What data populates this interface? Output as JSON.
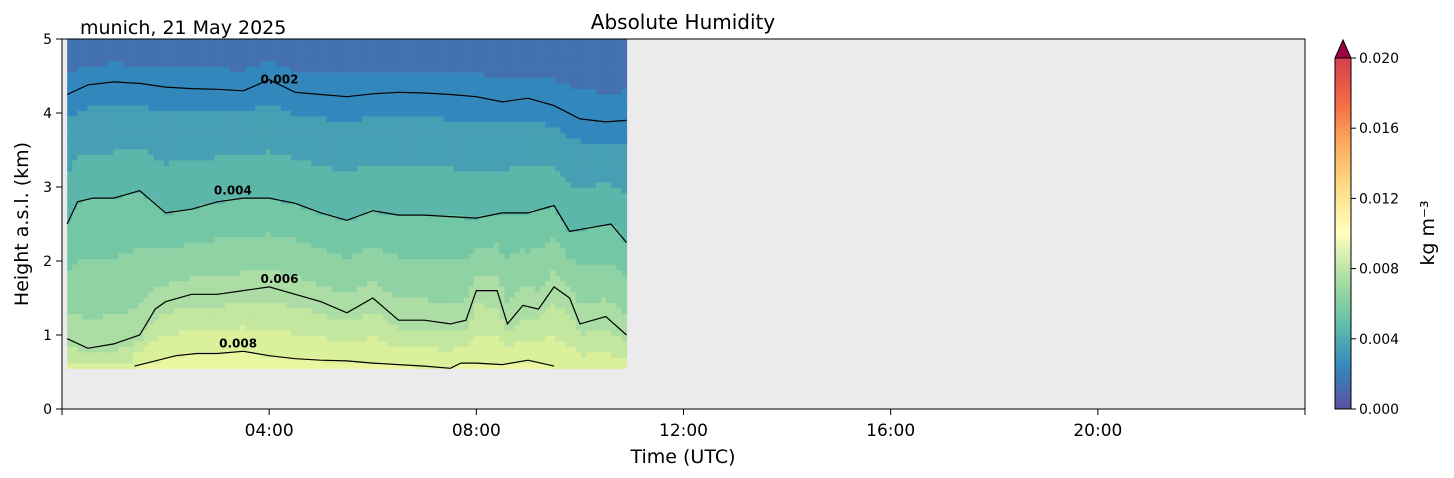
{
  "chart_data": {
    "type": "heatmap",
    "title": "Absolute Humidity",
    "subtitle": "munich, 21 May 2025",
    "xlabel": "Time (UTC)",
    "ylabel": "Height a.s.l. (km)",
    "xlim": [
      0,
      24
    ],
    "ylim": [
      0,
      5
    ],
    "x_ticks": [
      {
        "value": 4,
        "label": "04:00"
      },
      {
        "value": 8,
        "label": "08:00"
      },
      {
        "value": 12,
        "label": "12:00"
      },
      {
        "value": 16,
        "label": "16:00"
      },
      {
        "value": 20,
        "label": "20:00"
      }
    ],
    "y_ticks": [
      {
        "value": 0,
        "label": "0"
      },
      {
        "value": 1,
        "label": "1"
      },
      {
        "value": 2,
        "label": "2"
      },
      {
        "value": 3,
        "label": "3"
      },
      {
        "value": 4,
        "label": "4"
      },
      {
        "value": 5,
        "label": "5"
      }
    ],
    "data_extent": {
      "x": [
        0.1,
        10.9
      ],
      "y": [
        0.55,
        5.0
      ]
    },
    "no_data_color": "#ebebeb",
    "colormap": "Spectral_r",
    "colorbar": {
      "label": "kg m⁻³",
      "range": [
        0.0,
        0.02
      ],
      "extend": "max",
      "ticks": [
        {
          "value": 0.0,
          "label": "0.000"
        },
        {
          "value": 0.004,
          "label": "0.004"
        },
        {
          "value": 0.008,
          "label": "0.008"
        },
        {
          "value": 0.012,
          "label": "0.012"
        },
        {
          "value": 0.016,
          "label": "0.016"
        },
        {
          "value": 0.02,
          "label": "0.020"
        }
      ]
    },
    "contours": [
      {
        "level": 0.002,
        "label": "0.002",
        "label_at": [
          4.2,
          4.4
        ],
        "x": [
          0.1,
          0.5,
          1.0,
          1.5,
          2.0,
          2.5,
          3.0,
          3.5,
          4.0,
          4.5,
          5.0,
          5.5,
          6.0,
          6.5,
          7.0,
          7.5,
          8.0,
          8.5,
          9.0,
          9.5,
          10.0,
          10.5,
          10.9
        ],
        "y": [
          4.25,
          4.38,
          4.42,
          4.4,
          4.35,
          4.33,
          4.32,
          4.3,
          4.45,
          4.28,
          4.25,
          4.22,
          4.26,
          4.28,
          4.27,
          4.25,
          4.22,
          4.15,
          4.2,
          4.1,
          3.92,
          3.88,
          3.9
        ]
      },
      {
        "level": 0.004,
        "label": "0.004",
        "label_at": [
          3.3,
          2.9
        ],
        "x": [
          0.1,
          0.3,
          0.6,
          1.0,
          1.5,
          2.0,
          2.5,
          3.0,
          3.5,
          4.0,
          4.5,
          5.0,
          5.5,
          6.0,
          6.5,
          7.0,
          7.5,
          8.0,
          8.5,
          9.0,
          9.5,
          9.8,
          10.2,
          10.6,
          10.9
        ],
        "y": [
          2.5,
          2.8,
          2.85,
          2.85,
          2.95,
          2.65,
          2.7,
          2.8,
          2.85,
          2.85,
          2.78,
          2.65,
          2.55,
          2.68,
          2.62,
          2.62,
          2.6,
          2.58,
          2.65,
          2.65,
          2.75,
          2.4,
          2.45,
          2.5,
          2.25
        ]
      },
      {
        "level": 0.006,
        "label": "0.006",
        "label_at": [
          4.2,
          1.7
        ],
        "x": [
          0.1,
          0.5,
          1.0,
          1.5,
          1.8,
          2.0,
          2.5,
          3.0,
          3.5,
          4.0,
          4.5,
          5.0,
          5.5,
          6.0,
          6.5,
          7.0,
          7.5,
          7.8,
          8.0,
          8.4,
          8.6,
          8.9,
          9.2,
          9.5,
          9.8,
          10.0,
          10.5,
          10.9
        ],
        "y": [
          0.95,
          0.82,
          0.88,
          1.0,
          1.35,
          1.45,
          1.55,
          1.55,
          1.6,
          1.65,
          1.55,
          1.45,
          1.3,
          1.5,
          1.2,
          1.2,
          1.15,
          1.2,
          1.6,
          1.6,
          1.15,
          1.4,
          1.35,
          1.65,
          1.5,
          1.15,
          1.25,
          1.0
        ]
      },
      {
        "level": 0.008,
        "label": "0.008",
        "label_at": [
          3.4,
          0.83
        ],
        "x": [
          1.4,
          1.8,
          2.2,
          2.6,
          3.0,
          3.5,
          4.0,
          4.5,
          5.0,
          5.5,
          6.0,
          6.5,
          7.0,
          7.5,
          7.7,
          8.0,
          8.5,
          9.0,
          9.5
        ],
        "y": [
          0.58,
          0.65,
          0.72,
          0.75,
          0.75,
          0.78,
          0.72,
          0.68,
          0.66,
          0.65,
          0.62,
          0.6,
          0.58,
          0.55,
          0.62,
          0.62,
          0.6,
          0.66,
          0.58
        ]
      }
    ]
  }
}
